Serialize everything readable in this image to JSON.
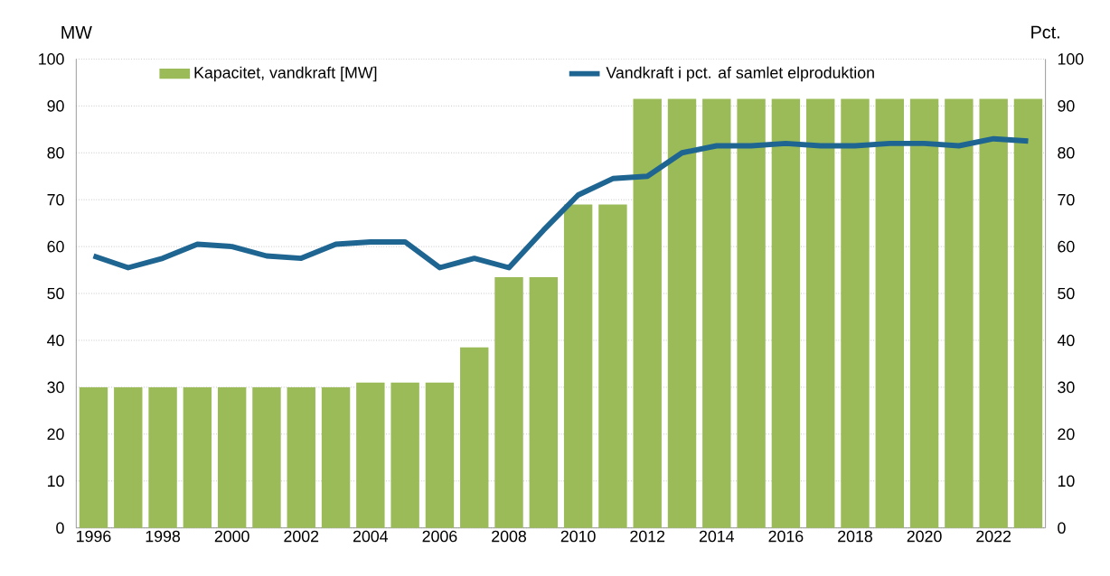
{
  "chart_data": {
    "type": "bar",
    "categories": [
      "1996",
      null,
      "1998",
      null,
      "2000",
      null,
      "2002",
      null,
      "2004",
      null,
      "2006",
      null,
      "2008",
      null,
      "2010",
      null,
      "2012",
      null,
      "2014",
      null,
      "2016",
      null,
      "2018",
      null,
      "2020",
      null,
      "2022",
      null
    ],
    "ylabel": "MW",
    "y2label": "Pct.",
    "series": [
      {
        "name": "Kapacitet, vandkraft [MW]",
        "color": "#9bbb59",
        "values": [
          30,
          30,
          30,
          30,
          30,
          30,
          30,
          30,
          31,
          31,
          31,
          38.5,
          53.5,
          53.5,
          69,
          69,
          91.5,
          91.5,
          91.5,
          91.5,
          91.5,
          91.5,
          91.5,
          91.5,
          91.5,
          91.5,
          91.5,
          91.5
        ]
      },
      {
        "name": "Vandkraft i pct. af samlet elproduktion",
        "type": "line",
        "axis": "y2",
        "color": "#1f6591",
        "values": [
          58,
          55.5,
          57.5,
          60.5,
          60,
          58,
          57.5,
          60.5,
          61,
          61,
          55.5,
          57.5,
          55.5,
          63.5,
          71,
          74.5,
          75,
          80,
          81.5,
          81.5,
          82,
          81.5,
          81.5,
          82,
          82,
          81.5,
          83,
          82.5
        ]
      }
    ],
    "ylim": [
      0,
      100
    ],
    "yticks": [
      0,
      10,
      20,
      30,
      40,
      50,
      60,
      70,
      80,
      90,
      100
    ],
    "y2lim": [
      0,
      100
    ],
    "y2ticks": [
      0,
      10,
      20,
      30,
      40,
      50,
      60,
      70,
      80,
      90,
      100
    ],
    "grid": "y",
    "legend": "top"
  }
}
